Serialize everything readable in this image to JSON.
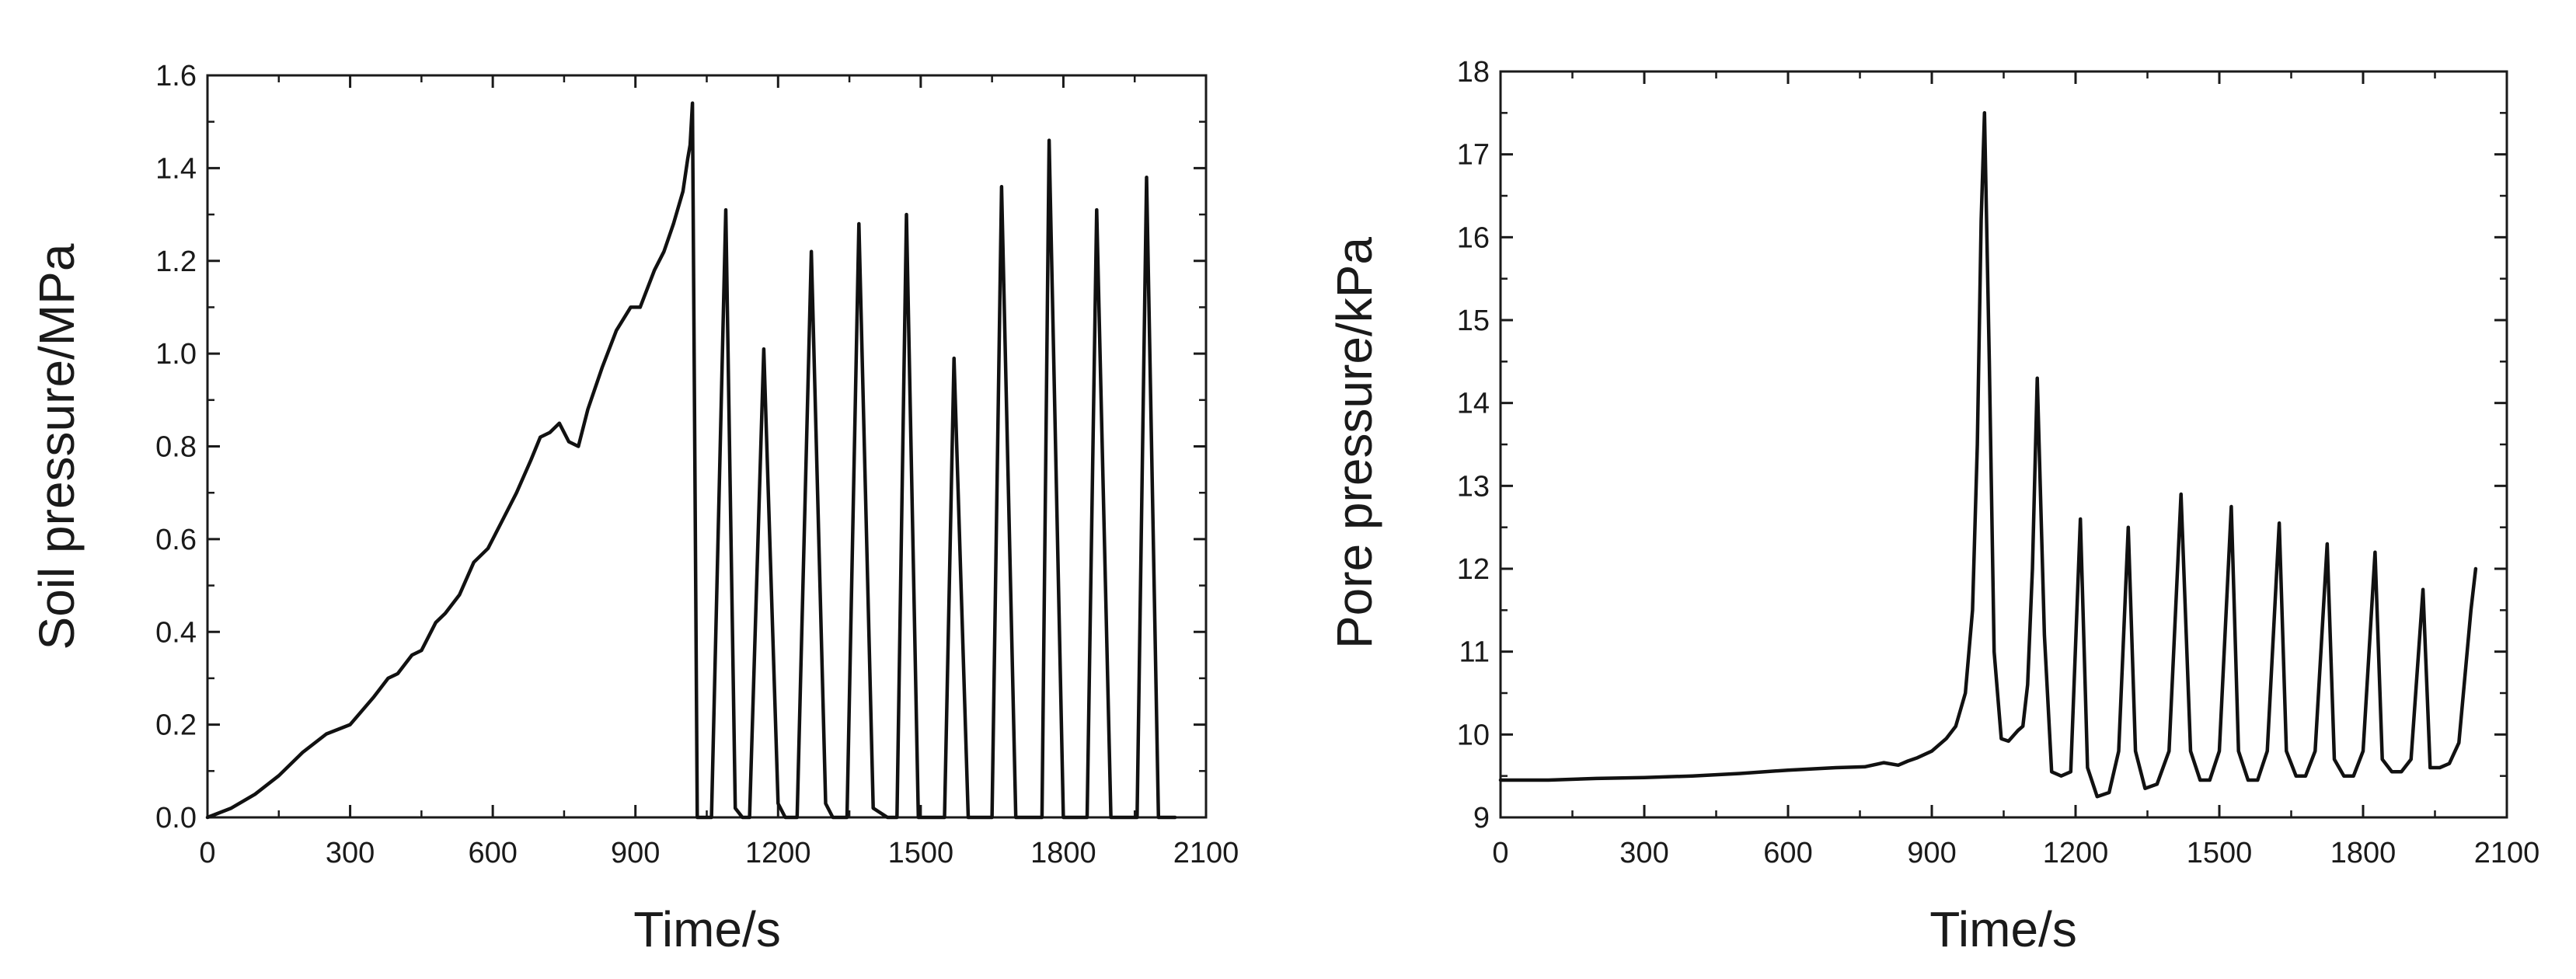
{
  "colors": {
    "series": "#111111",
    "axis": "#1a1a1a",
    "background": "#ffffff"
  },
  "chart_data": [
    {
      "type": "line",
      "title": "",
      "xlabel": "Time/s",
      "ylabel": "Soil pressure/MPa",
      "xlim": [
        0,
        2100
      ],
      "ylim": [
        0,
        1.6
      ],
      "xticks": [
        0,
        300,
        600,
        900,
        1200,
        1500,
        1800,
        2100
      ],
      "yticks": [
        0.0,
        0.2,
        0.4,
        0.6,
        0.8,
        1.0,
        1.2,
        1.4,
        1.6
      ],
      "xtick_labels": [
        "0",
        "300",
        "600",
        "900",
        "1200",
        "1500",
        "1800",
        "2100"
      ],
      "ytick_labels": [
        "0.0",
        "0.2",
        "0.4",
        "0.6",
        "0.8",
        "1.0",
        "1.2",
        "1.4",
        "1.6"
      ],
      "grid": false,
      "legend": "none",
      "series": [
        {
          "x": [
            0,
            50,
            100,
            150,
            200,
            250,
            300,
            350,
            380,
            400,
            430,
            450,
            480,
            500,
            530,
            560,
            590,
            620,
            650,
            680,
            700,
            720,
            740,
            760,
            780,
            800,
            830,
            860,
            890,
            910,
            940,
            960,
            980,
            1000,
            1010,
            1015,
            1020,
            1030,
            1060,
            1090,
            1110,
            1125,
            1140,
            1170,
            1200,
            1215,
            1240,
            1270,
            1300,
            1315,
            1345,
            1370,
            1400,
            1430,
            1450,
            1470,
            1495,
            1525,
            1550,
            1570,
            1600,
            1635,
            1650,
            1670,
            1700,
            1735,
            1755,
            1770,
            1800,
            1830,
            1850,
            1870,
            1900,
            1935,
            1955,
            1975,
            2000,
            2035
          ],
          "y": [
            0.0,
            0.02,
            0.05,
            0.09,
            0.14,
            0.18,
            0.2,
            0.26,
            0.3,
            0.31,
            0.35,
            0.36,
            0.42,
            0.44,
            0.48,
            0.55,
            0.58,
            0.64,
            0.7,
            0.77,
            0.82,
            0.83,
            0.85,
            0.81,
            0.8,
            0.88,
            0.97,
            1.05,
            1.1,
            1.1,
            1.18,
            1.22,
            1.28,
            1.35,
            1.42,
            1.45,
            1.54,
            0.0,
            0.0,
            1.31,
            0.02,
            0.0,
            0.0,
            1.01,
            0.03,
            0.0,
            0.0,
            1.22,
            0.03,
            0.0,
            0.0,
            1.28,
            0.02,
            0.0,
            0.0,
            1.3,
            0.0,
            0.0,
            0.0,
            0.99,
            0.0,
            0.0,
            0.0,
            1.36,
            0.0,
            0.0,
            0.0,
            1.46,
            0.0,
            0.0,
            0.0,
            1.31,
            0.0,
            0.0,
            0.0,
            1.38,
            0.0,
            0.0
          ]
        }
      ]
    },
    {
      "type": "line",
      "title": "",
      "xlabel": "Time/s",
      "ylabel": "Pore pressure/kPa",
      "xlim": [
        0,
        2100
      ],
      "ylim": [
        9,
        18
      ],
      "xticks": [
        0,
        300,
        600,
        900,
        1200,
        1500,
        1800,
        2100
      ],
      "yticks": [
        9,
        10,
        11,
        12,
        13,
        14,
        15,
        16,
        17,
        18
      ],
      "xtick_labels": [
        "0",
        "300",
        "600",
        "900",
        "1200",
        "1500",
        "1800",
        "2100"
      ],
      "ytick_labels": [
        "9",
        "10",
        "11",
        "12",
        "13",
        "14",
        "15",
        "16",
        "17",
        "18"
      ],
      "grid": false,
      "legend": "none",
      "series": [
        {
          "x": [
            0,
            100,
            200,
            300,
            400,
            500,
            600,
            700,
            760,
            800,
            830,
            850,
            870,
            900,
            930,
            950,
            970,
            985,
            995,
            1003,
            1010,
            1020,
            1030,
            1045,
            1060,
            1080,
            1090,
            1100,
            1110,
            1120,
            1135,
            1150,
            1170,
            1190,
            1210,
            1225,
            1245,
            1270,
            1290,
            1310,
            1325,
            1345,
            1370,
            1395,
            1420,
            1440,
            1460,
            1480,
            1500,
            1525,
            1540,
            1560,
            1580,
            1600,
            1625,
            1640,
            1660,
            1680,
            1700,
            1725,
            1740,
            1760,
            1780,
            1800,
            1825,
            1840,
            1860,
            1880,
            1900,
            1925,
            1940,
            1960,
            1980,
            2000,
            2025,
            2035
          ],
          "y": [
            9.45,
            9.45,
            9.47,
            9.48,
            9.5,
            9.53,
            9.57,
            9.6,
            9.61,
            9.66,
            9.63,
            9.68,
            9.72,
            9.8,
            9.95,
            10.1,
            10.5,
            11.5,
            13.5,
            16.2,
            17.5,
            14.5,
            11.0,
            9.95,
            9.92,
            10.05,
            10.1,
            10.6,
            12.0,
            14.3,
            11.2,
            9.55,
            9.5,
            9.55,
            12.6,
            9.6,
            9.25,
            9.3,
            9.8,
            12.5,
            9.8,
            9.35,
            9.4,
            9.8,
            12.9,
            9.8,
            9.45,
            9.45,
            9.8,
            12.75,
            9.8,
            9.45,
            9.45,
            9.8,
            12.55,
            9.8,
            9.5,
            9.5,
            9.8,
            12.3,
            9.7,
            9.5,
            9.5,
            9.8,
            12.2,
            9.7,
            9.55,
            9.55,
            9.7,
            11.75,
            9.6,
            9.6,
            9.65,
            9.9,
            11.5,
            12.0
          ]
        }
      ]
    }
  ]
}
